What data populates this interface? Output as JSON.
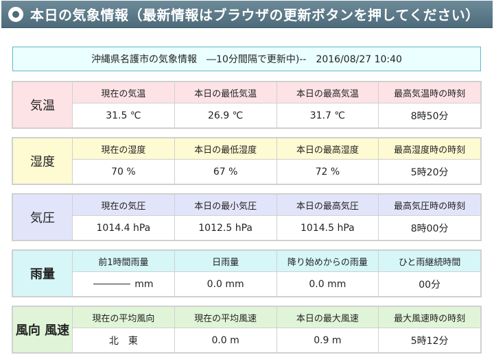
{
  "header": {
    "title": "本日の気象情報（最新情報はブラウザの更新ボタンを押してください）"
  },
  "station": {
    "text": "沖縄県名護市の気象情報　―10分間隔で更新中)--　2016/08/27 10:40"
  },
  "blocks": {
    "temperature": {
      "label": "気温",
      "headers": [
        "現在の気温",
        "本日の最低気温",
        "本日の最高気温",
        "最高気温時の時刻"
      ],
      "values": [
        "31.5 ℃",
        "26.9 ℃",
        "31.7 ℃",
        "8時50分"
      ]
    },
    "humidity": {
      "label": "湿度",
      "headers": [
        "現在の湿度",
        "本日の最低湿度",
        "本日の最高湿度",
        "最高湿度時の時刻"
      ],
      "values": [
        "70 %",
        "67 %",
        "72 %",
        "5時20分"
      ]
    },
    "pressure": {
      "label": "気圧",
      "headers": [
        "現在の気圧",
        "本日の最小気圧",
        "本日の最高気圧",
        "最高気圧時の時刻"
      ],
      "values": [
        "1014.4 hPa",
        "1012.5 hPa",
        "1014.5 hPa",
        "8時00分"
      ]
    },
    "rain": {
      "label": "雨量",
      "headers": [
        "前1時間雨量",
        "日雨量",
        "降り始めからの雨量",
        "ひと雨継続時間"
      ],
      "values": [
        "mm",
        "0.0 mm",
        "0.0 mm",
        "00分"
      ]
    },
    "wind": {
      "label": "風向 風速",
      "headers": [
        "現在の平均風向",
        "現在の平均風速",
        "本日の最大風速",
        "最大風速時の時刻"
      ],
      "values": [
        "北　東",
        "0.0 m",
        "0.9 m",
        "5時12分"
      ]
    }
  }
}
